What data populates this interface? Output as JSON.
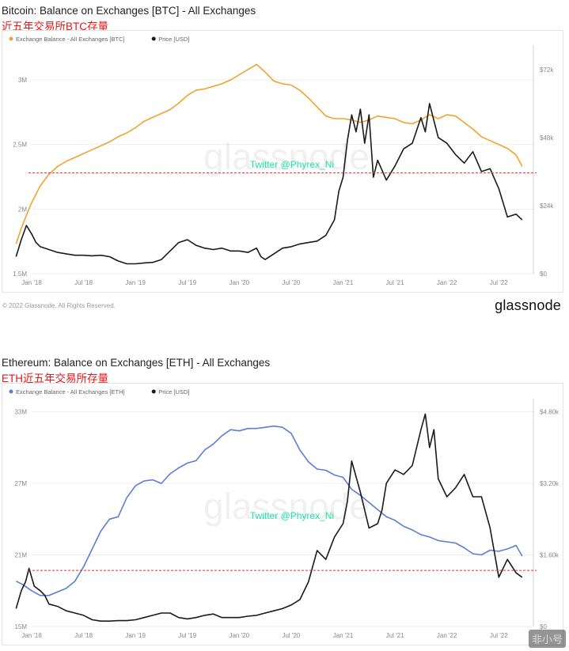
{
  "footer": {
    "copyright": "© 2022 Glassnode. All Rights Reserved.",
    "brand": "glassnode",
    "corner_watermark": "非小号"
  },
  "chart_data": [
    {
      "type": "line",
      "title": "Bitcoin: Balance on Exchanges [BTC] - All Exchanges",
      "subtitle": "近五年交易所BTC存量",
      "watermark": "glassnode",
      "overlay_text": "Twitter @Phyrex_Ni",
      "legend": [
        "Exchange Balance - All Exchanges [BTC]",
        "Price [USD]"
      ],
      "legend_position": "top-left",
      "x_ticks": [
        "Jan '18",
        "Jul '18",
        "Jan '19",
        "Jul '19",
        "Jan '20",
        "Jul '20",
        "Jan '21",
        "Jul '21",
        "Jan '22",
        "Jul '22"
      ],
      "x_range": [
        0,
        58
      ],
      "y_left": {
        "ticks": [
          "1.5M",
          "2M",
          "2.5M",
          "3M"
        ],
        "tick_values": [
          1.5,
          2.0,
          2.5,
          3.0
        ],
        "range": [
          1.5,
          3.3
        ]
      },
      "y_right": {
        "ticks": [
          "$0",
          "$24k",
          "$48k",
          "$72k"
        ],
        "tick_values": [
          0,
          24,
          48,
          72
        ],
        "range": [
          0,
          82
        ]
      },
      "reference_line_left": 2.28,
      "grid": true,
      "series": [
        {
          "name": "Exchange Balance - All Exchanges [BTC]",
          "color": "#f0a330",
          "axis": "left",
          "x": [
            -1.8,
            -1.2,
            -0.5,
            0,
            1,
            2,
            3,
            4,
            5,
            6,
            7,
            8,
            9,
            10,
            11,
            12,
            13,
            14,
            15,
            16,
            17,
            18,
            19,
            20,
            21,
            22,
            23,
            24,
            25,
            26,
            27,
            28,
            29,
            30,
            31,
            32,
            33,
            34,
            35,
            36,
            37,
            38,
            39,
            40,
            41,
            42,
            43,
            44,
            45,
            46,
            47,
            48,
            49,
            50,
            51,
            52,
            53,
            54,
            55,
            56,
            56.7
          ],
          "values": [
            1.73,
            1.85,
            1.97,
            2.05,
            2.18,
            2.27,
            2.33,
            2.37,
            2.4,
            2.43,
            2.46,
            2.49,
            2.52,
            2.56,
            2.59,
            2.63,
            2.68,
            2.71,
            2.74,
            2.77,
            2.82,
            2.88,
            2.92,
            2.93,
            2.95,
            2.97,
            3.0,
            3.04,
            3.08,
            3.12,
            3.06,
            2.99,
            2.97,
            2.96,
            2.92,
            2.86,
            2.79,
            2.72,
            2.7,
            2.7,
            2.69,
            2.67,
            2.69,
            2.72,
            2.71,
            2.7,
            2.67,
            2.66,
            2.69,
            2.73,
            2.7,
            2.73,
            2.72,
            2.67,
            2.62,
            2.56,
            2.53,
            2.5,
            2.47,
            2.42,
            2.33
          ]
        },
        {
          "name": "Price [USD]",
          "color": "#1a1a1a",
          "axis": "right",
          "x": [
            -1.8,
            -1.2,
            -0.6,
            0,
            0.5,
            1,
            2,
            3,
            4,
            5,
            6,
            7,
            8,
            9,
            10,
            11,
            12,
            13,
            14,
            15,
            16,
            17,
            18,
            19,
            20,
            21,
            22,
            23,
            24,
            25,
            26,
            26.5,
            27,
            28,
            29,
            30,
            31,
            32,
            33,
            34,
            35,
            35.5,
            36,
            36.5,
            37,
            37.5,
            38,
            38.5,
            39,
            39.5,
            40,
            41,
            42,
            43,
            44,
            45,
            45.5,
            46,
            47,
            48,
            49,
            50,
            51,
            52,
            53,
            54,
            55,
            56,
            56.7
          ],
          "values": [
            6,
            12,
            17,
            14,
            11,
            9.5,
            8.5,
            7.5,
            7,
            6.5,
            6.5,
            6.3,
            6.5,
            6,
            4.5,
            3.5,
            3.5,
            3.8,
            4.0,
            5,
            8,
            11,
            12,
            10,
            9,
            8.5,
            9,
            8,
            8,
            7.5,
            9,
            6,
            5,
            7,
            9,
            9.5,
            10.5,
            11,
            11.5,
            13.5,
            19,
            29,
            34,
            47,
            56,
            50,
            58,
            46,
            56,
            34,
            40,
            33,
            38,
            44,
            46,
            55,
            50,
            60,
            48,
            46,
            42,
            39,
            43,
            36,
            37,
            30,
            20,
            21,
            19
          ]
        }
      ]
    },
    {
      "type": "line",
      "title": "Ethereum: Balance on Exchanges [ETH] - All Exchanges",
      "subtitle": "ETH近五年交易所存量",
      "watermark": "glassnode",
      "overlay_text": "Twitter @Phyrex_Ni",
      "legend": [
        "Exchange Balance - All Exchanges [ETH]",
        "Price [USD]"
      ],
      "legend_position": "top-left",
      "x_ticks": [
        "Jan '18",
        "Jul '18",
        "Jan '19",
        "Jul '19",
        "Jan '20",
        "Jul '20",
        "Jan '21",
        "Jul '21",
        "Jan '22",
        "Jul '22"
      ],
      "x_range": [
        0,
        58
      ],
      "y_left": {
        "ticks": [
          "15M",
          "21M",
          "27M",
          "33M"
        ],
        "tick_values": [
          15,
          21,
          27,
          33
        ],
        "range": [
          15,
          34.5
        ]
      },
      "y_right": {
        "ticks": [
          "$0",
          "$1.60k",
          "$3.20k",
          "$4.80k"
        ],
        "tick_values": [
          0,
          1.6,
          3.2,
          4.8
        ],
        "range": [
          0,
          5.2
        ]
      },
      "reference_line_left": 19.7,
      "grid": true,
      "series": [
        {
          "name": "Exchange Balance - All Exchanges [ETH]",
          "color": "#5b7fd1",
          "axis": "left",
          "x": [
            -1.8,
            -1,
            0,
            1,
            2,
            3,
            4,
            5,
            6,
            7,
            8,
            9,
            10,
            11,
            12,
            13,
            14,
            15,
            16,
            17,
            18,
            19,
            20,
            21,
            22,
            23,
            24,
            25,
            26,
            27,
            28,
            29,
            30,
            31,
            32,
            33,
            34,
            35,
            36,
            37,
            38,
            39,
            40,
            41,
            42,
            43,
            44,
            45,
            46,
            47,
            48,
            49,
            50,
            51,
            52,
            53,
            54,
            55,
            56,
            56.7
          ],
          "values": [
            18.8,
            18.5,
            18.0,
            17.6,
            17.6,
            17.9,
            18.2,
            18.8,
            20.0,
            21.5,
            23.0,
            24.0,
            24.2,
            25.8,
            26.8,
            27.2,
            27.3,
            27.0,
            27.8,
            28.3,
            28.7,
            28.9,
            29.8,
            30.3,
            31.0,
            31.5,
            31.4,
            31.6,
            31.6,
            31.7,
            31.8,
            31.7,
            31.2,
            29.8,
            28.8,
            28.2,
            28.1,
            27.7,
            27.5,
            26.5,
            26.0,
            25.4,
            24.8,
            24.2,
            23.9,
            23.4,
            23.1,
            22.7,
            22.5,
            22.2,
            22.1,
            22.0,
            21.6,
            21.1,
            21.0,
            21.4,
            21.3,
            21.5,
            21.8,
            20.9
          ]
        },
        {
          "name": "Price [USD]",
          "color": "#1a1a1a",
          "axis": "right",
          "x": [
            -1.8,
            -1.2,
            -0.7,
            -0.3,
            0.3,
            1,
            1.5,
            2,
            3,
            4,
            5,
            6,
            7,
            8,
            9,
            10,
            11,
            12,
            13,
            14,
            15,
            16,
            17,
            18,
            19,
            20,
            21,
            22,
            23,
            24,
            25,
            26,
            27,
            28,
            29,
            30,
            31,
            32,
            33,
            34,
            35,
            36,
            36.5,
            37,
            38,
            39,
            40,
            40.5,
            41,
            42,
            43,
            44,
            45,
            45.5,
            46,
            46.5,
            47,
            48,
            49,
            50,
            51,
            52,
            53,
            54,
            55,
            56,
            56.7
          ],
          "values": [
            0.4,
            0.8,
            1.0,
            1.3,
            0.9,
            0.8,
            0.7,
            0.5,
            0.45,
            0.35,
            0.3,
            0.25,
            0.15,
            0.12,
            0.12,
            0.13,
            0.13,
            0.15,
            0.2,
            0.25,
            0.3,
            0.3,
            0.2,
            0.17,
            0.2,
            0.25,
            0.28,
            0.2,
            0.2,
            0.2,
            0.23,
            0.25,
            0.3,
            0.35,
            0.4,
            0.48,
            0.6,
            1.0,
            1.7,
            1.5,
            2.0,
            2.3,
            2.8,
            3.7,
            3.0,
            2.2,
            2.3,
            2.6,
            3.2,
            3.5,
            3.4,
            3.6,
            4.4,
            4.75,
            4.0,
            4.4,
            3.3,
            2.9,
            3.1,
            3.4,
            2.9,
            2.9,
            2.2,
            1.1,
            1.5,
            1.2,
            1.1
          ]
        }
      ]
    }
  ]
}
